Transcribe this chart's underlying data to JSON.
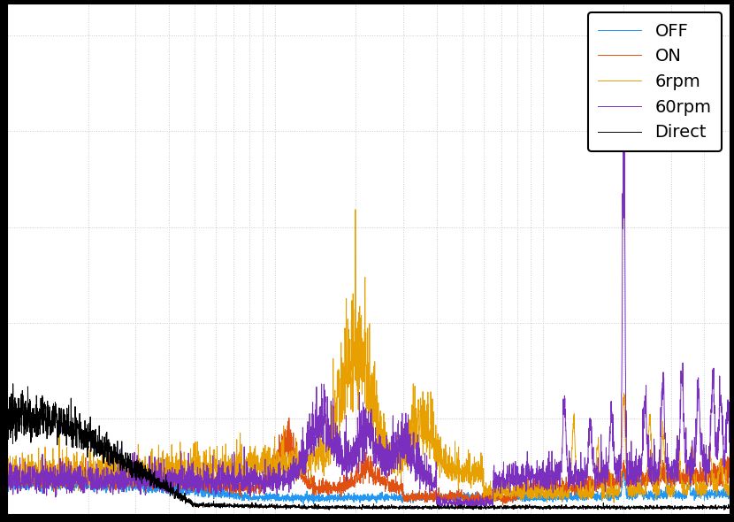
{
  "legend_labels": [
    "OFF",
    "ON",
    "6rpm",
    "60rpm",
    "Direct"
  ],
  "colors": [
    "#2196F3",
    "#E05010",
    "#E8A000",
    "#7B2FBE",
    "#000000"
  ],
  "figsize": [
    8.3,
    5.9
  ],
  "dpi": 100,
  "xlim_log": [
    0,
    2.699
  ],
  "grid_color": "#cccccc",
  "legend_fontsize": 14,
  "bg_color": "#ffffff",
  "outer_color": "#000000"
}
